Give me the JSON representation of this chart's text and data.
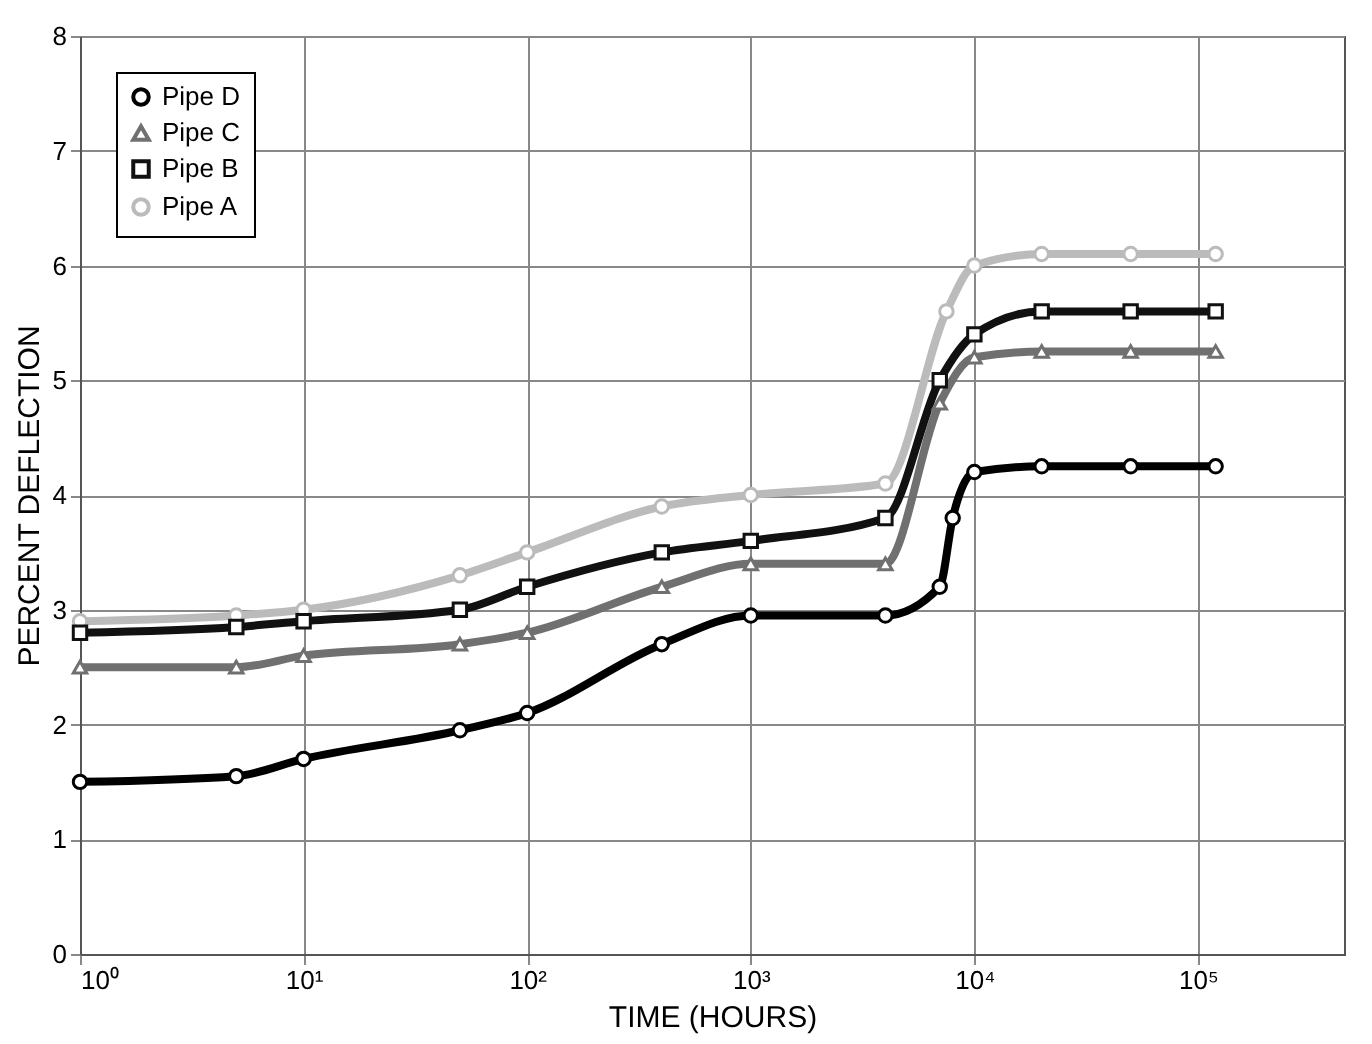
{
  "chart_data": {
    "type": "line",
    "xlabel": "TIME (HOURS)",
    "ylabel": "PERCENT DEFLECTION",
    "log": "x",
    "grid": true,
    "legend": "top left",
    "line_style": "solid",
    "xlim": [
      1,
      450000
    ],
    "xticks": [
      {
        "value": 1,
        "label": "10⁰"
      },
      {
        "value": 10,
        "label": "10¹"
      },
      {
        "value": 100,
        "label": "10²"
      },
      {
        "value": 1000,
        "label": "10³"
      },
      {
        "value": 10000,
        "label": "10⁴"
      },
      {
        "value": 100000,
        "label": "10⁵"
      }
    ],
    "ylim": [
      0,
      8
    ],
    "yticks": [
      0,
      1,
      2,
      3,
      4,
      5,
      6,
      7,
      8
    ],
    "series": [
      {
        "name": "Pipe D",
        "color": "#000000",
        "marker": "circle",
        "x": [
          1,
          5,
          10,
          50,
          100,
          400,
          1000,
          4000,
          7000,
          8000,
          10000,
          20000,
          50000,
          120000
        ],
        "values": [
          1.5,
          1.55,
          1.7,
          1.95,
          2.1,
          2.7,
          2.95,
          2.95,
          3.2,
          3.8,
          4.2,
          4.25,
          4.25,
          4.25
        ]
      },
      {
        "name": "Pipe C",
        "color": "#707070",
        "marker": "triangle",
        "x": [
          1,
          5,
          10,
          50,
          100,
          400,
          1000,
          4000,
          7000,
          10000,
          20000,
          50000,
          120000
        ],
        "values": [
          2.5,
          2.5,
          2.6,
          2.7,
          2.8,
          3.2,
          3.4,
          3.4,
          4.8,
          5.2,
          5.25,
          5.25,
          5.25
        ]
      },
      {
        "name": "Pipe B",
        "color": "#111111",
        "marker": "square",
        "x": [
          1,
          5,
          10,
          50,
          100,
          400,
          1000,
          4000,
          7000,
          10000,
          20000,
          50000,
          120000
        ],
        "values": [
          2.8,
          2.85,
          2.9,
          3.0,
          3.2,
          3.5,
          3.6,
          3.8,
          5.0,
          5.4,
          5.6,
          5.6,
          5.6
        ]
      },
      {
        "name": "Pipe A",
        "color": "#bbbbbb",
        "marker": "circle",
        "x": [
          1,
          5,
          10,
          50,
          100,
          400,
          1000,
          4000,
          7500,
          10000,
          20000,
          50000,
          120000
        ],
        "values": [
          2.9,
          2.95,
          3.0,
          3.3,
          3.5,
          3.9,
          4.0,
          4.1,
          5.6,
          6.0,
          6.1,
          6.1,
          6.1
        ]
      }
    ]
  }
}
